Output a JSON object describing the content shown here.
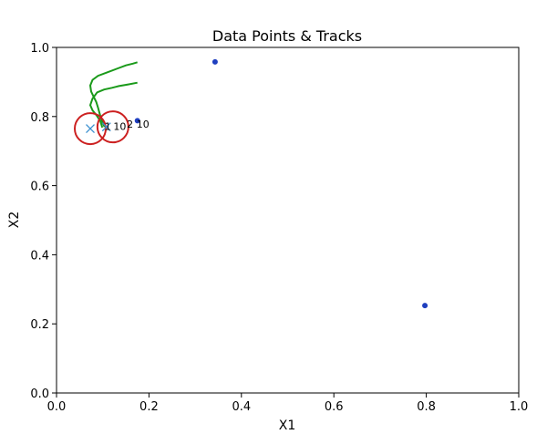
{
  "chart_data": {
    "type": "scatter",
    "title": "Data Points & Tracks",
    "xlabel": "X1",
    "ylabel": "X2",
    "xlim": [
      0,
      1
    ],
    "ylim": [
      0,
      1
    ],
    "xticks": [
      "0.0",
      "0.2",
      "0.4",
      "0.6",
      "0.8",
      "1.0"
    ],
    "yticks": [
      "0.0",
      "0.2",
      "0.4",
      "0.6",
      "0.8",
      "1.0"
    ],
    "grid": false,
    "points": [
      {
        "x": 0.343,
        "y": 0.958
      },
      {
        "x": 0.175,
        "y": 0.788
      },
      {
        "x": 0.797,
        "y": 0.253
      }
    ],
    "tracks": [
      {
        "points": [
          [
            0.175,
            0.957
          ],
          [
            0.165,
            0.953
          ],
          [
            0.15,
            0.948
          ],
          [
            0.13,
            0.938
          ],
          [
            0.11,
            0.928
          ],
          [
            0.09,
            0.918
          ],
          [
            0.078,
            0.906
          ],
          [
            0.073,
            0.89
          ],
          [
            0.075,
            0.872
          ],
          [
            0.08,
            0.858
          ],
          [
            0.086,
            0.842
          ],
          [
            0.09,
            0.825
          ],
          [
            0.095,
            0.8
          ],
          [
            0.1,
            0.782
          ],
          [
            0.104,
            0.77
          ]
        ]
      },
      {
        "points": [
          [
            0.175,
            0.898
          ],
          [
            0.155,
            0.893
          ],
          [
            0.135,
            0.888
          ],
          [
            0.12,
            0.883
          ],
          [
            0.103,
            0.878
          ],
          [
            0.088,
            0.87
          ],
          [
            0.078,
            0.852
          ],
          [
            0.073,
            0.833
          ],
          [
            0.078,
            0.818
          ],
          [
            0.087,
            0.803
          ],
          [
            0.095,
            0.786
          ],
          [
            0.099,
            0.768
          ]
        ]
      }
    ],
    "crosses": [
      {
        "x": 0.073,
        "y": 0.765
      },
      {
        "x": 0.108,
        "y": 0.77
      }
    ],
    "circles": [
      {
        "x": 0.073,
        "y": 0.765
      },
      {
        "x": 0.122,
        "y": 0.77
      }
    ],
    "annotations": [
      {
        "text": "1",
        "x": 0.104,
        "y": 0.772
      },
      {
        "text": "10",
        "x": 0.123,
        "y": 0.772
      },
      {
        "text": "2",
        "x": 0.152,
        "y": 0.779
      },
      {
        "text": "10",
        "x": 0.173,
        "y": 0.779
      }
    ],
    "colors": {
      "point": "#1f3fbf",
      "track": "#1a9a1a",
      "cross": "#3a8fcf",
      "circle": "#cc2020",
      "axes": "#000000"
    }
  }
}
